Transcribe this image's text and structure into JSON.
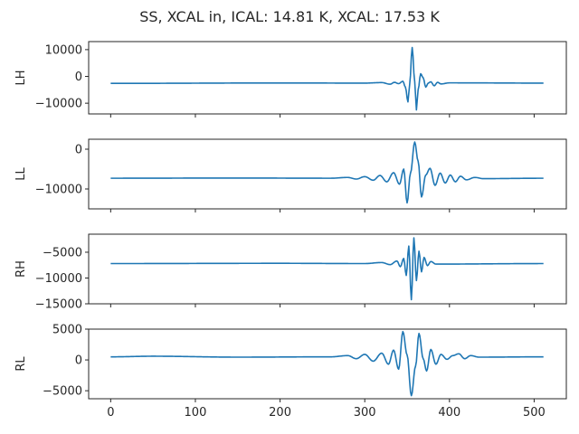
{
  "chart_data": {
    "type": "line",
    "title": "SS, XCAL in, ICAL: 14.81 K, XCAL: 17.53 K",
    "line_color": "#1f77b4",
    "shared_x": {
      "xlim": [
        -26,
        538
      ],
      "ticks": [
        0,
        100,
        200,
        300,
        400,
        500
      ],
      "tick_labels": [
        "0",
        "100",
        "200",
        "300",
        "400",
        "500"
      ]
    },
    "x_note_samples": "0..511",
    "panels": [
      {
        "ylabel": "LH",
        "ylim": [
          -14000,
          13000
        ],
        "yticks": [
          10000,
          0,
          -10000
        ],
        "ytick_labels": [
          "10000",
          "0",
          "−10000"
        ],
        "baseline": -2500,
        "burst": [
          {
            "x": 0,
            "y": -2600
          },
          {
            "x": 200,
            "y": -2450
          },
          {
            "x": 300,
            "y": -2500
          },
          {
            "x": 320,
            "y": -2300
          },
          {
            "x": 330,
            "y": -2900
          },
          {
            "x": 335,
            "y": -2200
          },
          {
            "x": 340,
            "y": -2700
          },
          {
            "x": 345,
            "y": -1800
          },
          {
            "x": 348,
            "y": -4000
          },
          {
            "x": 351,
            "y": -9500
          },
          {
            "x": 353,
            "y": -3000
          },
          {
            "x": 356,
            "y": 10800
          },
          {
            "x": 359,
            "y": -2000
          },
          {
            "x": 361,
            "y": -12500
          },
          {
            "x": 363,
            "y": -5000
          },
          {
            "x": 366,
            "y": 1000
          },
          {
            "x": 369,
            "y": -500
          },
          {
            "x": 372,
            "y": -4000
          },
          {
            "x": 375,
            "y": -2500
          },
          {
            "x": 378,
            "y": -2000
          },
          {
            "x": 382,
            "y": -3500
          },
          {
            "x": 386,
            "y": -2200
          },
          {
            "x": 390,
            "y": -2800
          },
          {
            "x": 400,
            "y": -2400
          },
          {
            "x": 511,
            "y": -2500
          }
        ]
      },
      {
        "ylabel": "LL",
        "ylim": [
          -15000,
          2500
        ],
        "yticks": [
          0,
          -10000
        ],
        "ytick_labels": [
          "0",
          "−10000"
        ],
        "baseline": -7300,
        "burst": [
          {
            "x": 0,
            "y": -7300
          },
          {
            "x": 150,
            "y": -7250
          },
          {
            "x": 260,
            "y": -7300
          },
          {
            "x": 280,
            "y": -7100
          },
          {
            "x": 290,
            "y": -7500
          },
          {
            "x": 300,
            "y": -6900
          },
          {
            "x": 310,
            "y": -7800
          },
          {
            "x": 318,
            "y": -6600
          },
          {
            "x": 326,
            "y": -8200
          },
          {
            "x": 334,
            "y": -5900
          },
          {
            "x": 341,
            "y": -8800
          },
          {
            "x": 346,
            "y": -5000
          },
          {
            "x": 350,
            "y": -13500
          },
          {
            "x": 354,
            "y": -6000
          },
          {
            "x": 359,
            "y": 1800
          },
          {
            "x": 363,
            "y": -3000
          },
          {
            "x": 367,
            "y": -12000
          },
          {
            "x": 372,
            "y": -6500
          },
          {
            "x": 377,
            "y": -4800
          },
          {
            "x": 383,
            "y": -9100
          },
          {
            "x": 389,
            "y": -6000
          },
          {
            "x": 395,
            "y": -8500
          },
          {
            "x": 401,
            "y": -6500
          },
          {
            "x": 407,
            "y": -8200
          },
          {
            "x": 413,
            "y": -6800
          },
          {
            "x": 420,
            "y": -7700
          },
          {
            "x": 430,
            "y": -7100
          },
          {
            "x": 440,
            "y": -7400
          },
          {
            "x": 511,
            "y": -7300
          }
        ]
      },
      {
        "ylabel": "RH",
        "ylim": [
          -15000,
          -1500
        ],
        "yticks": [
          -5000,
          -10000,
          -15000
        ],
        "ytick_labels": [
          "−5000",
          "−10000",
          "−15000"
        ],
        "baseline": -7200,
        "burst": [
          {
            "x": 0,
            "y": -7200
          },
          {
            "x": 200,
            "y": -7150
          },
          {
            "x": 300,
            "y": -7200
          },
          {
            "x": 320,
            "y": -7000
          },
          {
            "x": 330,
            "y": -7400
          },
          {
            "x": 338,
            "y": -6700
          },
          {
            "x": 342,
            "y": -7800
          },
          {
            "x": 346,
            "y": -6200
          },
          {
            "x": 349,
            "y": -9500
          },
          {
            "x": 352,
            "y": -3800
          },
          {
            "x": 355,
            "y": -14200
          },
          {
            "x": 358,
            "y": -2200
          },
          {
            "x": 361,
            "y": -10500
          },
          {
            "x": 364,
            "y": -4800
          },
          {
            "x": 367,
            "y": -8800
          },
          {
            "x": 370,
            "y": -6000
          },
          {
            "x": 374,
            "y": -7600
          },
          {
            "x": 378,
            "y": -6800
          },
          {
            "x": 384,
            "y": -7300
          },
          {
            "x": 511,
            "y": -7200
          }
        ]
      },
      {
        "ylabel": "RL",
        "ylim": [
          -6300,
          5000
        ],
        "yticks": [
          5000,
          0,
          -5000
        ],
        "ytick_labels": [
          "5000",
          "0",
          "−5000"
        ],
        "baseline": 500,
        "burst": [
          {
            "x": 0,
            "y": 500
          },
          {
            "x": 50,
            "y": 600
          },
          {
            "x": 150,
            "y": 450
          },
          {
            "x": 260,
            "y": 500
          },
          {
            "x": 280,
            "y": 700
          },
          {
            "x": 290,
            "y": 200
          },
          {
            "x": 300,
            "y": 900
          },
          {
            "x": 310,
            "y": -200
          },
          {
            "x": 320,
            "y": 1100
          },
          {
            "x": 328,
            "y": -700
          },
          {
            "x": 334,
            "y": 1600
          },
          {
            "x": 340,
            "y": -1500
          },
          {
            "x": 345,
            "y": 4600
          },
          {
            "x": 350,
            "y": 800
          },
          {
            "x": 355,
            "y": -5800
          },
          {
            "x": 360,
            "y": -1000
          },
          {
            "x": 364,
            "y": 4300
          },
          {
            "x": 369,
            "y": 200
          },
          {
            "x": 373,
            "y": -1800
          },
          {
            "x": 378,
            "y": 1700
          },
          {
            "x": 384,
            "y": -700
          },
          {
            "x": 390,
            "y": 900
          },
          {
            "x": 397,
            "y": 100
          },
          {
            "x": 404,
            "y": 700
          },
          {
            "x": 411,
            "y": 1000
          },
          {
            "x": 418,
            "y": 200
          },
          {
            "x": 425,
            "y": 700
          },
          {
            "x": 435,
            "y": 450
          },
          {
            "x": 511,
            "y": 500
          }
        ]
      }
    ]
  }
}
